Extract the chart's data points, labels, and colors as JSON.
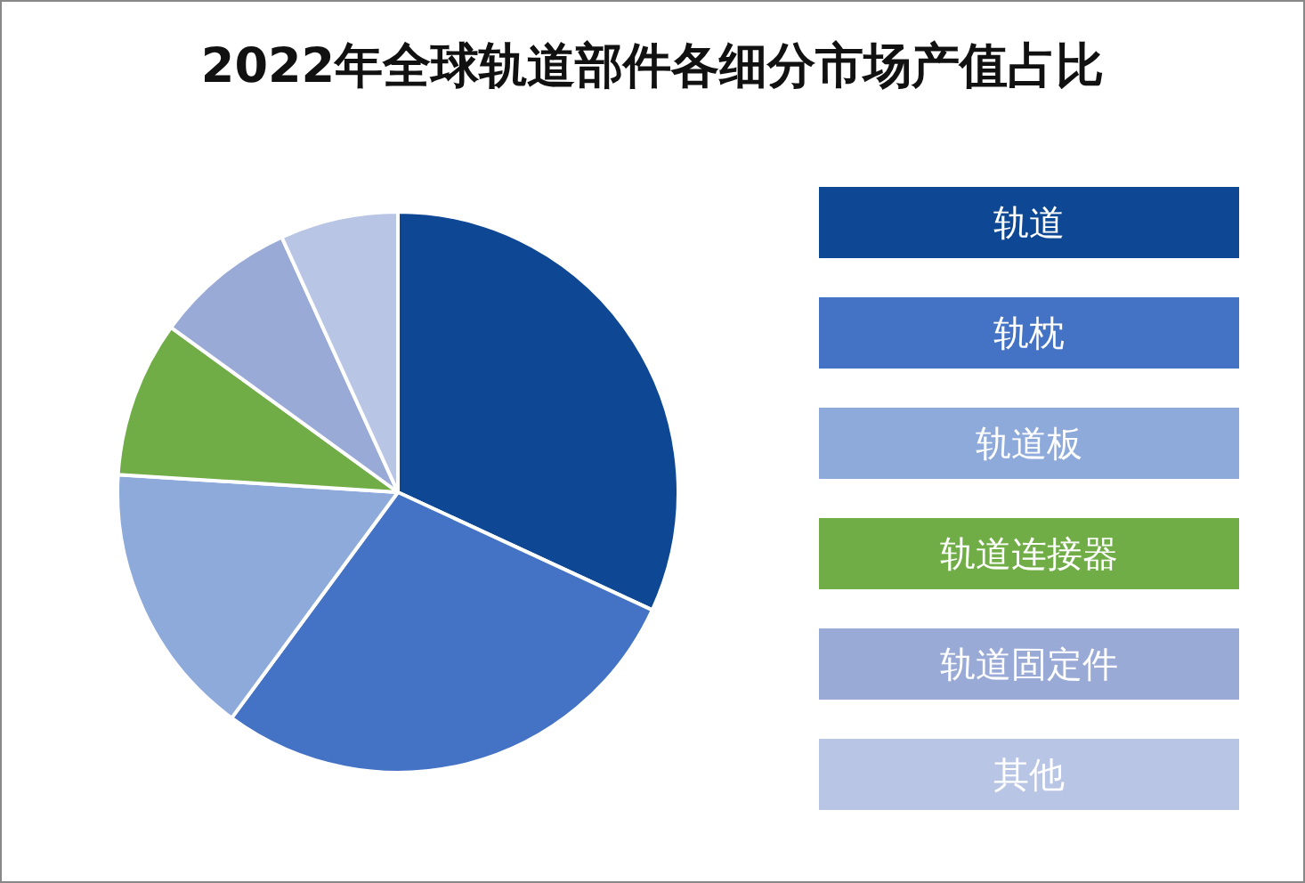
{
  "chart_data": {
    "type": "pie",
    "title": "2022年全球轨道部件各细分市场产值占比",
    "categories": [
      "轨道",
      "轨枕",
      "轨道板",
      "轨道连接器",
      "轨道固定件",
      "其他"
    ],
    "values": [
      31.9,
      28.2,
      15.9,
      9.0,
      8.2,
      6.8
    ],
    "colors": [
      "#0e4793",
      "#4472c4",
      "#8eaadb",
      "#70ad47",
      "#9aaad6",
      "#b8c5e4"
    ],
    "legend": "right"
  }
}
